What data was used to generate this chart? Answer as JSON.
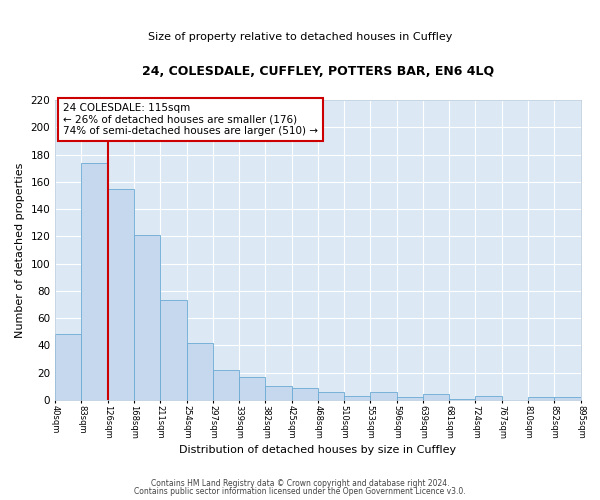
{
  "title": "24, COLESDALE, CUFFLEY, POTTERS BAR, EN6 4LQ",
  "subtitle": "Size of property relative to detached houses in Cuffley",
  "xlabel": "Distribution of detached houses by size in Cuffley",
  "ylabel": "Number of detached properties",
  "bar_values": [
    48,
    174,
    155,
    121,
    73,
    42,
    22,
    17,
    10,
    9,
    6,
    3,
    6,
    2,
    4,
    1,
    3,
    0,
    2,
    2
  ],
  "bar_labels": [
    "40sqm",
    "83sqm",
    "126sqm",
    "168sqm",
    "211sqm",
    "254sqm",
    "297sqm",
    "339sqm",
    "382sqm",
    "425sqm",
    "468sqm",
    "510sqm",
    "553sqm",
    "596sqm",
    "639sqm",
    "681sqm",
    "724sqm",
    "767sqm",
    "810sqm",
    "852sqm",
    "895sqm"
  ],
  "bar_color": "#c5d8ee",
  "bar_edge_color": "#6aaad4",
  "red_line_x": 2,
  "red_line_color": "#cc0000",
  "annotation_line1": "24 COLESDALE: 115sqm",
  "annotation_line2": "← 26% of detached houses are smaller (176)",
  "annotation_line3": "74% of semi-detached houses are larger (510) →",
  "annotation_box_color": "#ffffff",
  "annotation_box_edge": "#cc0000",
  "ylim": [
    0,
    220
  ],
  "yticks": [
    0,
    20,
    40,
    60,
    80,
    100,
    120,
    140,
    160,
    180,
    200,
    220
  ],
  "footer_line1": "Contains HM Land Registry data © Crown copyright and database right 2024.",
  "footer_line2": "Contains public sector information licensed under the Open Government Licence v3.0.",
  "plot_bg_color": "#dce9f5",
  "fig_bg_color": "#ffffff",
  "grid_color": "#ffffff"
}
